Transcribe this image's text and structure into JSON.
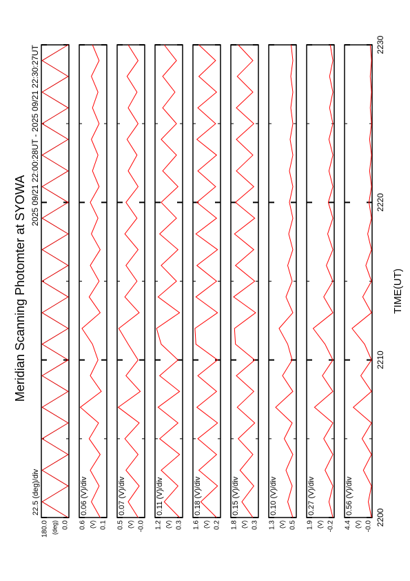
{
  "chart_data": {
    "type": "line",
    "title": "Meridian Scanning Photomter at SYOWA",
    "time_range": "2025 09/21 22:00:28UT - 2025 09/21 22:30:27UT",
    "xlabel": "TIME(UT)",
    "xlim": [
      0,
      30
    ],
    "xticks": [
      {
        "value": 0,
        "label": "2200"
      },
      {
        "value": 10,
        "label": "2210"
      },
      {
        "value": 20,
        "label": "2220"
      },
      {
        "value": 30,
        "label": "2230"
      }
    ],
    "xminor": [
      5,
      15,
      25
    ],
    "x": [
      0,
      1,
      2,
      3,
      4,
      5,
      6,
      7,
      8,
      9,
      10,
      11,
      12,
      13,
      14,
      15,
      16,
      17,
      18,
      19,
      20,
      21,
      22,
      23,
      24,
      25,
      26,
      27,
      28,
      29,
      30
    ],
    "panels": [
      {
        "scale_label": "22.5 (deg)/div",
        "ylabel": "(deg)",
        "color": "#e00000",
        "ylim": [
          0,
          180
        ],
        "yticks": [
          {
            "value": 0,
            "label": "0.0"
          },
          {
            "value": 180,
            "label": "180.0"
          }
        ],
        "values": [
          5,
          175,
          5,
          175,
          5,
          175,
          5,
          175,
          5,
          175,
          5,
          175,
          5,
          175,
          5,
          175,
          5,
          175,
          5,
          175,
          5,
          175,
          5,
          175,
          5,
          175,
          5,
          175,
          5,
          175,
          5
        ]
      },
      {
        "scale_label": "0.06 (V)/div",
        "ylabel": "(V)",
        "color": "#ff0000",
        "ylim": [
          0.1,
          0.6
        ],
        "yticks": [
          {
            "value": 0.1,
            "label": "0.1"
          },
          {
            "value": 0.6,
            "label": "0.6"
          }
        ],
        "values": [
          0.22,
          0.38,
          0.24,
          0.4,
          0.22,
          0.42,
          0.25,
          0.58,
          0.2,
          0.4,
          0.26,
          0.36,
          0.55,
          0.22,
          0.42,
          0.24,
          0.4,
          0.22,
          0.38,
          0.26,
          0.4,
          0.24,
          0.36,
          0.26,
          0.38,
          0.24,
          0.36,
          0.26,
          0.38,
          0.24,
          0.36
        ]
      },
      {
        "scale_label": "0.07 (V)/div",
        "ylabel": "(V)",
        "color": "#ff0000",
        "ylim": [
          0,
          0.5
        ],
        "yticks": [
          {
            "value": 0,
            "label": "-0.0"
          },
          {
            "value": 0.5,
            "label": "0.5"
          }
        ],
        "values": [
          0.12,
          0.3,
          0.1,
          0.34,
          0.12,
          0.36,
          0.1,
          0.48,
          0.08,
          0.34,
          0.12,
          0.3,
          0.47,
          0.1,
          0.36,
          0.14,
          0.34,
          0.12,
          0.36,
          0.14,
          0.34,
          0.12,
          0.3,
          0.14,
          0.32,
          0.12,
          0.3,
          0.14,
          0.32,
          0.12,
          0.3
        ]
      },
      {
        "scale_label": "0.11 (V)/div",
        "ylabel": "(V)",
        "color": "#ff0000",
        "ylim": [
          0.3,
          1.2
        ],
        "yticks": [
          {
            "value": 0.3,
            "label": "0.3"
          },
          {
            "value": 1.2,
            "label": "1.2"
          }
        ],
        "values": [
          0.4,
          0.9,
          0.45,
          1.0,
          0.4,
          1.05,
          0.45,
          1.1,
          0.4,
          1.05,
          0.45,
          1.0,
          1.15,
          0.4,
          1.1,
          0.5,
          1.0,
          0.45,
          1.05,
          0.5,
          1.0,
          0.45,
          0.95,
          0.5,
          1.0,
          0.5,
          0.95,
          0.55,
          0.95,
          0.5,
          0.9
        ]
      },
      {
        "scale_label": "0.18 (V)/div",
        "ylabel": "(V)",
        "color": "#ff0000",
        "ylim": [
          0.2,
          1.6
        ],
        "yticks": [
          {
            "value": 0.2,
            "label": "0.2"
          },
          {
            "value": 1.6,
            "label": "1.6"
          }
        ],
        "values": [
          0.4,
          1.2,
          0.35,
          1.3,
          0.4,
          1.35,
          0.35,
          1.4,
          0.4,
          1.35,
          0.35,
          1.45,
          1.5,
          0.35,
          1.45,
          0.4,
          1.4,
          0.35,
          1.45,
          0.4,
          1.4,
          0.45,
          1.35,
          0.4,
          1.4,
          0.45,
          1.35,
          0.4,
          1.3,
          0.45,
          1.3
        ]
      },
      {
        "scale_label": "0.15 (V)/div",
        "ylabel": "(V)",
        "color": "#ff0000",
        "ylim": [
          0.3,
          1.8
        ],
        "yticks": [
          {
            "value": 0.3,
            "label": "0.3"
          },
          {
            "value": 1.8,
            "label": "1.8"
          }
        ],
        "values": [
          0.6,
          1.2,
          0.55,
          1.3,
          0.6,
          1.4,
          0.5,
          1.45,
          0.55,
          1.5,
          0.5,
          1.55,
          1.6,
          0.45,
          1.65,
          0.5,
          1.55,
          0.55,
          1.6,
          0.5,
          1.55,
          0.55,
          1.5,
          0.6,
          1.5,
          0.55,
          1.5,
          0.6,
          1.45,
          0.6,
          1.4
        ]
      },
      {
        "scale_label": "0.10 (V)/div",
        "ylabel": "(V)",
        "color": "#ff0000",
        "ylim": [
          0.5,
          1.3
        ],
        "yticks": [
          {
            "value": 0.5,
            "label": "0.5"
          },
          {
            "value": 1.3,
            "label": "1.3"
          }
        ],
        "values": [
          0.6,
          0.75,
          0.62,
          0.8,
          0.6,
          0.85,
          0.62,
          1.1,
          0.6,
          0.9,
          0.62,
          0.75,
          1.0,
          0.6,
          0.8,
          0.62,
          0.75,
          0.6,
          0.72,
          0.6,
          0.7,
          0.6,
          0.7,
          0.6,
          0.68,
          0.6,
          0.66,
          0.6,
          0.66,
          0.6,
          0.65
        ]
      },
      {
        "scale_label": "0.27 (V)/div",
        "ylabel": "(V)",
        "color": "#ff0000",
        "ylim": [
          -0.2,
          1.9
        ],
        "yticks": [
          {
            "value": -0.2,
            "label": "-0.2"
          },
          {
            "value": 1.9,
            "label": "1.9"
          }
        ],
        "values": [
          -0.1,
          0.2,
          -0.1,
          0.5,
          -0.1,
          0.6,
          -0.1,
          1.3,
          -0.1,
          0.7,
          -0.1,
          0.5,
          1.4,
          -0.1,
          0.6,
          -0.1,
          0.4,
          -0.1,
          0.3,
          -0.1,
          0.25,
          -0.1,
          0.2,
          -0.1,
          0.2,
          -0.1,
          0.15,
          -0.1,
          0.15,
          -0.1,
          0.1
        ]
      },
      {
        "scale_label": "0.56 (V)/div",
        "ylabel": "(V)",
        "color": "#ff0000",
        "ylim": [
          0,
          4.4
        ],
        "yticks": [
          {
            "value": 0,
            "label": "-0.0"
          },
          {
            "value": 4.4,
            "label": "4.4"
          }
        ],
        "values": [
          0.1,
          0.6,
          0.1,
          1.4,
          0.1,
          1.6,
          0.1,
          3.0,
          0.1,
          1.8,
          0.1,
          1.2,
          3.2,
          0.1,
          1.5,
          0.1,
          1.0,
          0.1,
          0.7,
          0.1,
          0.5,
          0.1,
          0.4,
          0.1,
          0.4,
          0.1,
          0.3,
          0.1,
          0.3,
          0.1,
          0.3
        ]
      }
    ]
  }
}
